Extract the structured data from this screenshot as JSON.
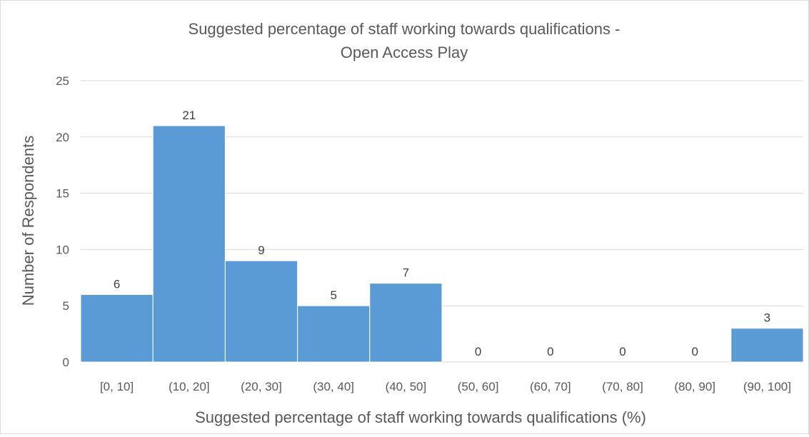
{
  "chart_data": {
    "type": "bar",
    "title": "Suggested percentage of staff working towards qualifications -",
    "subtitle": "Open Access Play",
    "xlabel": "Suggested percentage of staff working towards qualifications (%)",
    "ylabel": "Number of Respondents",
    "categories": [
      "[0, 10]",
      "(10, 20]",
      "(20, 30]",
      "(30, 40]",
      "(40, 50]",
      "(50, 60]",
      "(60, 70]",
      "(70, 80]",
      "(80, 90]",
      "(90, 100]"
    ],
    "values": [
      6,
      21,
      9,
      5,
      7,
      0,
      0,
      0,
      0,
      3
    ],
    "data_labels": [
      "6",
      "21",
      "9",
      "5",
      "7",
      "0",
      "0",
      "0",
      "0",
      "3"
    ],
    "ylim": [
      0,
      25
    ],
    "yticks": [
      0,
      5,
      10,
      15,
      20,
      25
    ],
    "ytick_labels": [
      "0",
      "5",
      "10",
      "15",
      "20",
      "25"
    ],
    "grid": true,
    "legend": "none",
    "bar_color": "#5b9bd5",
    "bar_edge_color": "#ffffff",
    "grid_color": "#d9d9d9"
  }
}
